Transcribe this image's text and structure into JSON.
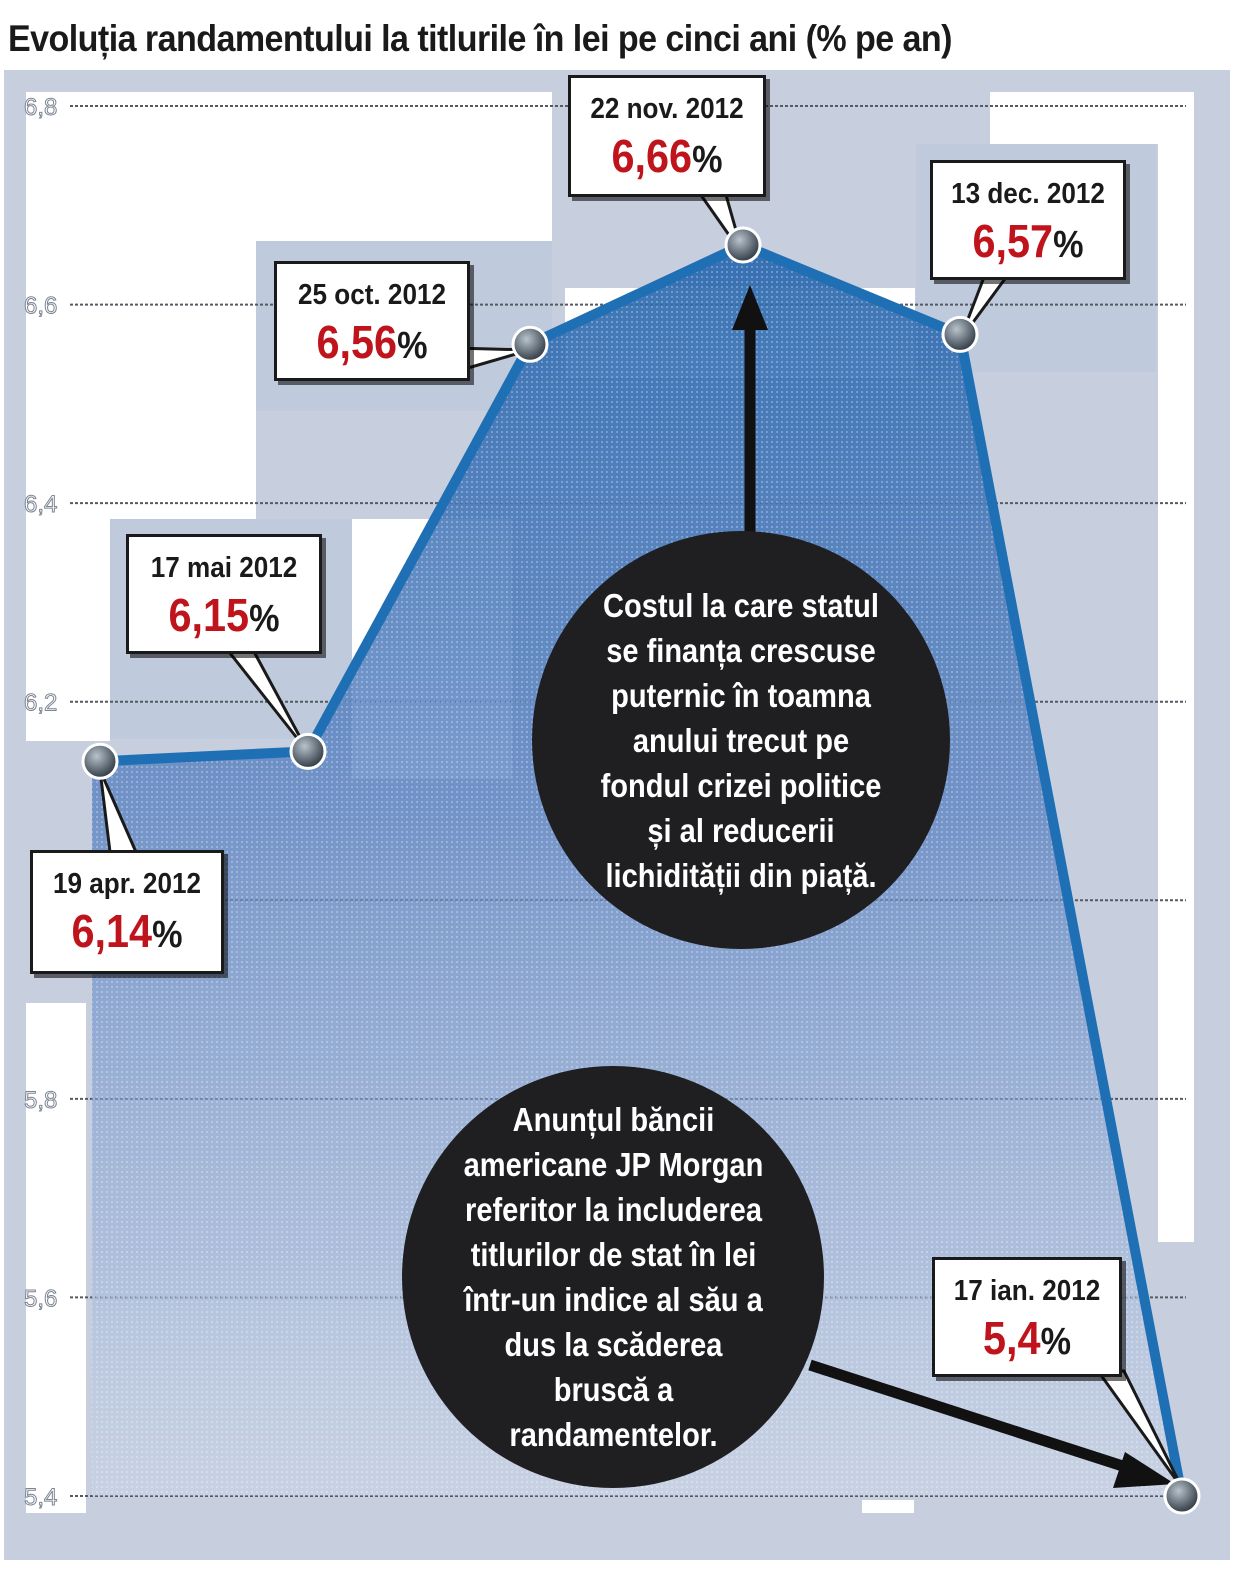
{
  "title": "Evoluția randamentului la titlurile în lei pe cinci ani (% pe an)",
  "chart_data": {
    "type": "area",
    "x": [
      "19 apr. 2012",
      "17 mai 2012",
      "25 oct. 2012",
      "22 nov. 2012",
      "13 dec. 2012",
      "17 ian. 2012"
    ],
    "values": [
      6.14,
      6.15,
      6.56,
      6.66,
      6.57,
      5.4
    ],
    "ylim": [
      5.4,
      6.8
    ],
    "yticks": [
      5.4,
      5.6,
      5.8,
      6.0,
      6.2,
      6.4,
      6.6,
      6.8
    ],
    "ytick_labels": [
      "5,4",
      "5,6",
      "5,8",
      "",
      "6,2",
      "6,4",
      "6,6",
      "6,8"
    ],
    "grid": true,
    "xlabel": "",
    "ylabel": "",
    "callouts": [
      {
        "date": "19 apr. 2012",
        "value": "6,14",
        "unit": "%"
      },
      {
        "date": "17 mai 2012",
        "value": "6,15",
        "unit": "%"
      },
      {
        "date": "25 oct. 2012",
        "value": "6,56",
        "unit": "%"
      },
      {
        "date": "22 nov. 2012",
        "value": "6,66",
        "unit": "%"
      },
      {
        "date": "13 dec. 2012",
        "value": "6,57",
        "unit": "%"
      },
      {
        "date": "17 ian. 2012",
        "value": "5,4",
        "unit": "%"
      }
    ]
  },
  "annotations": {
    "top_bubble": "Costul la care statul se finanța crescuse puternic în toamna anului trecut pe fondul crizei politice și al reducerii lichidității din piață.",
    "bottom_bubble": "Anunțul băncii americane JP Morgan referitor la includerea titlurilor de stat în lei într-un indice al său a dus la scăderea bruscă a randamentelor."
  },
  "colors": {
    "background": "#c7cfdf",
    "line": "#1f6fb5",
    "value_text": "#c0141c",
    "bubble": "#1f1f21",
    "marker": "#5f6a74"
  }
}
